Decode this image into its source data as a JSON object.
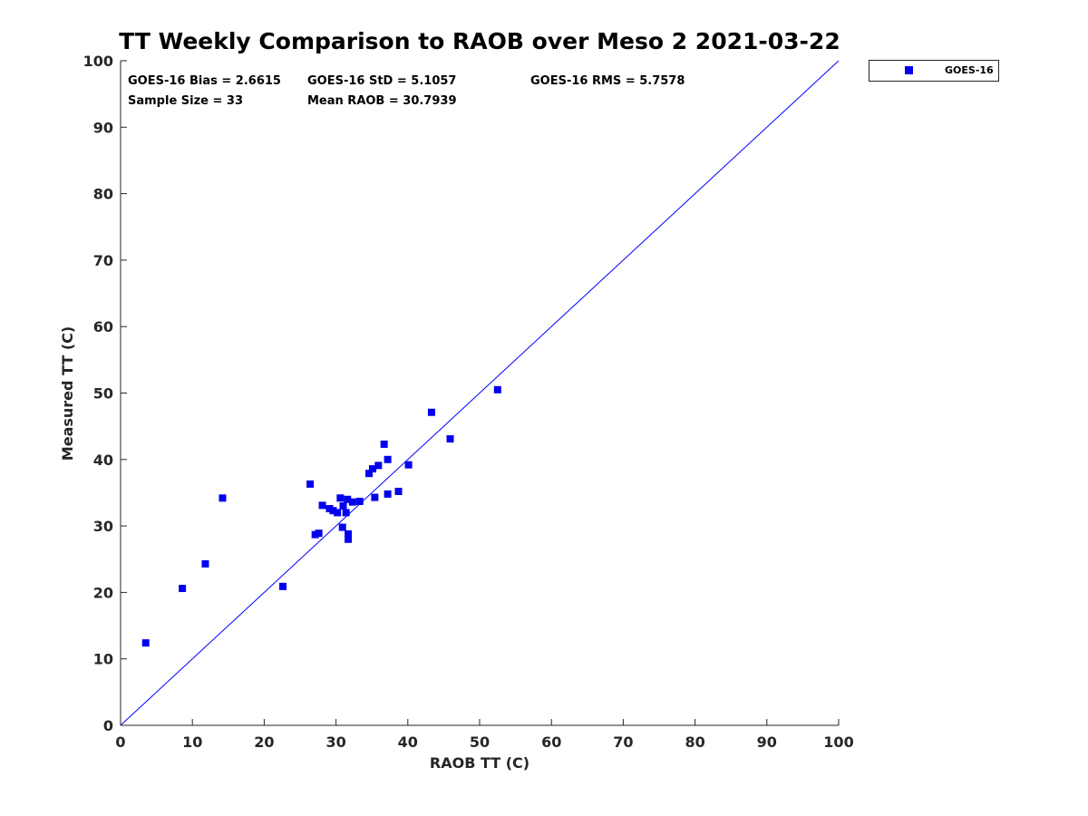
{
  "chart_data": {
    "type": "scatter",
    "title": "TT Weekly Comparison to RAOB over Meso 2 2021-03-22",
    "xlabel": "RAOB TT (C)",
    "ylabel": "Measured TT (C)",
    "xlim": [
      0,
      100
    ],
    "ylim": [
      0,
      100
    ],
    "xticks": [
      "0",
      "10",
      "20",
      "30",
      "40",
      "50",
      "60",
      "70",
      "80",
      "90",
      "100"
    ],
    "yticks": [
      "0",
      "10",
      "20",
      "30",
      "40",
      "50",
      "60",
      "70",
      "80",
      "90",
      "100"
    ],
    "grid": false,
    "legend_position": "top-right outside",
    "reference_line": {
      "name": "1:1 line",
      "from": [
        0,
        0
      ],
      "to": [
        100,
        100
      ],
      "color": "#0000ff"
    },
    "stats": {
      "bias": "GOES-16 Bias = 2.6615",
      "std": "GOES-16 StD = 5.1057",
      "rms": "GOES-16 RMS = 5.7578",
      "sample_size": "Sample Size = 33",
      "mean_raob": "Mean RAOB = 30.7939"
    },
    "series": [
      {
        "name": "GOES-16",
        "color": "#0000ee",
        "marker": "square",
        "points": [
          [
            3.5,
            12.4
          ],
          [
            8.6,
            20.6
          ],
          [
            11.8,
            24.3
          ],
          [
            14.2,
            34.2
          ],
          [
            22.6,
            20.9
          ],
          [
            26.4,
            36.3
          ],
          [
            27.1,
            28.7
          ],
          [
            27.6,
            28.9
          ],
          [
            28.1,
            33.1
          ],
          [
            29.1,
            32.6
          ],
          [
            29.6,
            32.3
          ],
          [
            30.2,
            32.0
          ],
          [
            30.6,
            34.2
          ],
          [
            30.9,
            29.8
          ],
          [
            31.0,
            33.0
          ],
          [
            31.4,
            32.0
          ],
          [
            31.6,
            34.0
          ],
          [
            31.7,
            28.8
          ],
          [
            31.7,
            28.0
          ],
          [
            32.3,
            33.6
          ],
          [
            33.3,
            33.7
          ],
          [
            34.6,
            37.9
          ],
          [
            35.1,
            38.6
          ],
          [
            35.4,
            34.3
          ],
          [
            35.9,
            39.1
          ],
          [
            36.7,
            42.3
          ],
          [
            37.2,
            34.8
          ],
          [
            37.2,
            40.0
          ],
          [
            38.7,
            35.2
          ],
          [
            40.1,
            39.2
          ],
          [
            43.3,
            47.1
          ],
          [
            45.9,
            43.1
          ],
          [
            52.5,
            50.5
          ]
        ]
      }
    ]
  }
}
